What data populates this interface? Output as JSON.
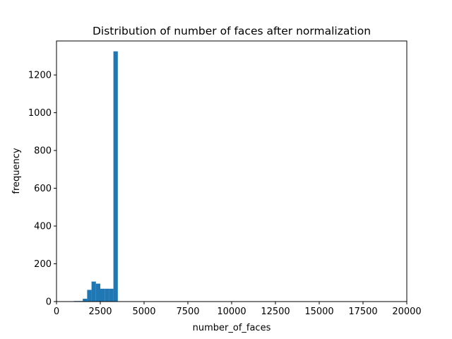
{
  "chart_data": {
    "type": "bar",
    "title": "Distribution of number of faces after normalization",
    "xlabel": "number_of_faces",
    "ylabel": "frequency",
    "xlim": [
      0,
      20000
    ],
    "ylim": [
      0,
      1380
    ],
    "xticks": [
      0,
      2500,
      5000,
      7500,
      10000,
      12500,
      15000,
      17500,
      20000
    ],
    "yticks": [
      0,
      200,
      400,
      600,
      800,
      1000,
      1200
    ],
    "grid": false,
    "bar_color": "#1f77b4",
    "bins": [
      {
        "x0": 1000,
        "x1": 1250,
        "value": 3
      },
      {
        "x0": 1250,
        "x1": 1500,
        "value": 3
      },
      {
        "x0": 1500,
        "x1": 1750,
        "value": 15
      },
      {
        "x0": 1750,
        "x1": 2000,
        "value": 62
      },
      {
        "x0": 2000,
        "x1": 2250,
        "value": 106
      },
      {
        "x0": 2250,
        "x1": 2500,
        "value": 95
      },
      {
        "x0": 2500,
        "x1": 2750,
        "value": 68
      },
      {
        "x0": 2750,
        "x1": 3000,
        "value": 68
      },
      {
        "x0": 3000,
        "x1": 3250,
        "value": 68
      },
      {
        "x0": 3250,
        "x1": 3500,
        "value": 1325
      }
    ]
  }
}
